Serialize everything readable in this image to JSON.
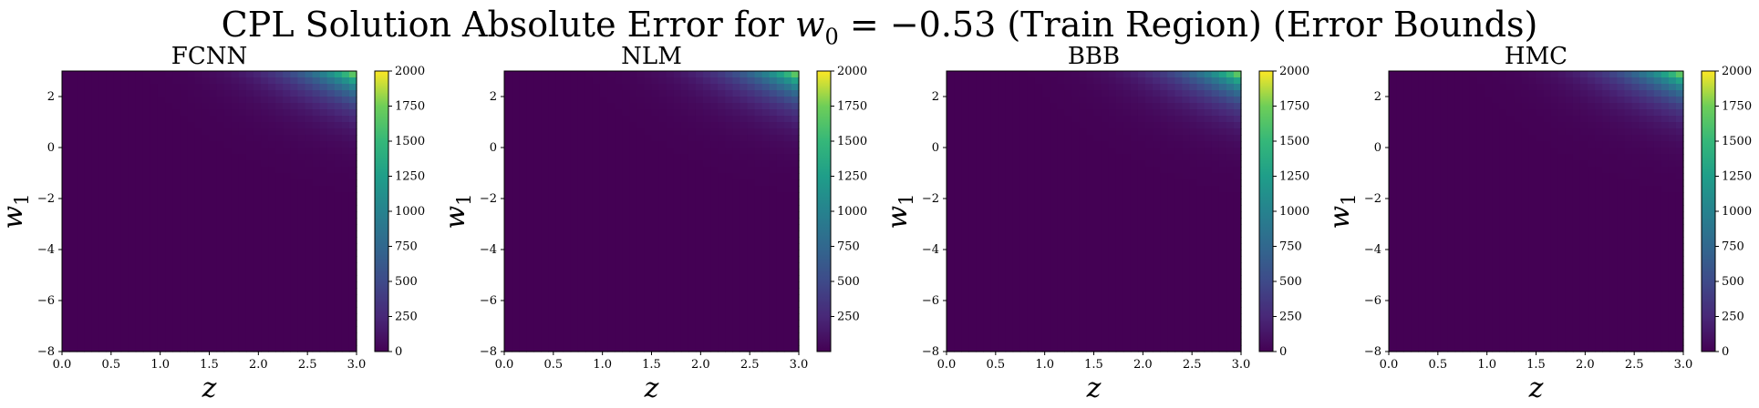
{
  "figure": {
    "suptitle_prefix": "CPL Solution Absolute Error for ",
    "suptitle_math": "w",
    "suptitle_sub": "0",
    "suptitle_eq": " = −0.53",
    "suptitle_suffix": " (Train Region) (Error Bounds)"
  },
  "colormap": "viridis",
  "colors": {
    "viridis_low": "#440154",
    "viridis_mid": "#21918c",
    "viridis_high": "#fde725"
  },
  "chart_data": [
    {
      "type": "heatmap",
      "title": "FCNN",
      "xlabel": "z",
      "ylabel": "w1",
      "xlim": [
        0.0,
        3.0
      ],
      "ylim": [
        -8,
        3
      ],
      "xticks": [
        "0.0",
        "0.5",
        "1.0",
        "1.5",
        "2.0",
        "2.5",
        "3.0"
      ],
      "yticks": [
        "2",
        "0",
        "−2",
        "−4",
        "−6",
        "−8"
      ],
      "colorbar": {
        "min": 0,
        "max": 2000,
        "ticks": [
          "0",
          "250",
          "500",
          "750",
          "1000",
          "1250",
          "1500",
          "1750",
          "2000"
        ]
      },
      "max_value": 2000,
      "error_model": "concentrated in upper-right corner (high z, high w1)"
    },
    {
      "type": "heatmap",
      "title": "NLM",
      "xlabel": "z",
      "ylabel": "w1",
      "xlim": [
        0.0,
        3.0
      ],
      "ylim": [
        -8,
        3
      ],
      "xticks": [
        "0.0",
        "0.5",
        "1.0",
        "1.5",
        "2.0",
        "2.5",
        "3.0"
      ],
      "yticks": [
        "2",
        "0",
        "−2",
        "−4",
        "−6",
        "−8"
      ],
      "colorbar": {
        "min": 0,
        "max": 2000,
        "ticks": [
          "250",
          "500",
          "750",
          "1000",
          "1250",
          "1500",
          "1750",
          "2000"
        ]
      },
      "max_value": 2000,
      "error_model": "concentrated in upper-right corner (high z, high w1)"
    },
    {
      "type": "heatmap",
      "title": "BBB",
      "xlabel": "z",
      "ylabel": "w1",
      "xlim": [
        0.0,
        3.0
      ],
      "ylim": [
        -8,
        3
      ],
      "xticks": [
        "0.0",
        "0.5",
        "1.0",
        "1.5",
        "2.0",
        "2.5",
        "3.0"
      ],
      "yticks": [
        "2",
        "0",
        "−2",
        "−4",
        "−6",
        "−8"
      ],
      "colorbar": {
        "min": 0,
        "max": 2000,
        "ticks": [
          "0",
          "250",
          "500",
          "750",
          "1000",
          "1250",
          "1500",
          "1750",
          "2000"
        ]
      },
      "max_value": 2000,
      "error_model": "concentrated in upper-right corner (high z, high w1)"
    },
    {
      "type": "heatmap",
      "title": "HMC",
      "xlabel": "z",
      "ylabel": "w1",
      "xlim": [
        0.0,
        3.0
      ],
      "ylim": [
        -8,
        3
      ],
      "xticks": [
        "0.0",
        "0.5",
        "1.0",
        "1.5",
        "2.0",
        "2.5",
        "3.0"
      ],
      "yticks": [
        "2",
        "0",
        "−2",
        "−4",
        "−6",
        "−8"
      ],
      "colorbar": {
        "min": 0,
        "max": 2000,
        "ticks": [
          "0",
          "250",
          "500",
          "750",
          "1000",
          "1250",
          "1500",
          "1750",
          "2000"
        ]
      },
      "max_value": 2000,
      "error_model": "concentrated in upper-right corner (high z, high w1)"
    }
  ]
}
